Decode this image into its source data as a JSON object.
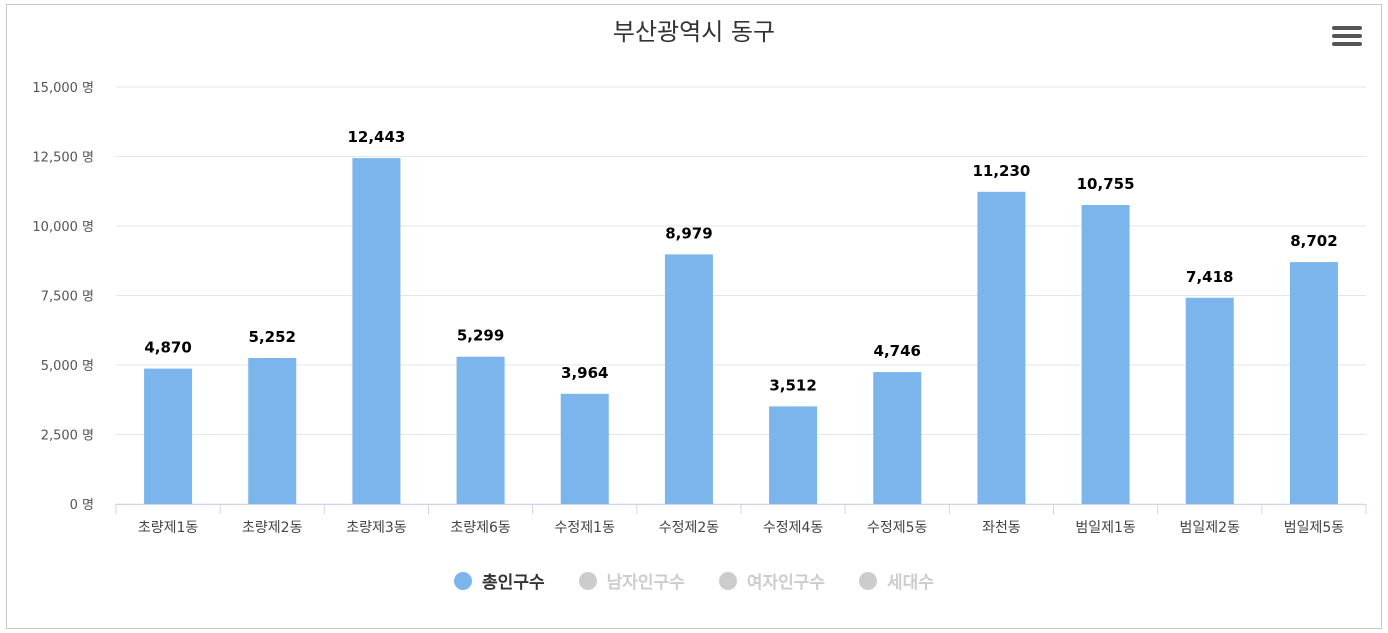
{
  "chart_data": {
    "type": "bar",
    "title": "부산광역시 동구",
    "categories": [
      "초량제1동",
      "초량제2동",
      "초량제3동",
      "초량제6동",
      "수정제1동",
      "수정제2동",
      "수정제4동",
      "수정제5동",
      "좌천동",
      "범일제1동",
      "범일제2동",
      "범일제5동"
    ],
    "series": [
      {
        "name": "총인구수",
        "values": [
          4870,
          5252,
          12443,
          5299,
          3964,
          8979,
          3512,
          4746,
          11230,
          10755,
          7418,
          8702
        ]
      }
    ],
    "value_labels": [
      "4,870",
      "5,252",
      "12,443",
      "5,299",
      "3,964",
      "8,979",
      "3,512",
      "4,746",
      "11,230",
      "10,755",
      "7,418",
      "8,702"
    ],
    "y_ticks": [
      0,
      2500,
      5000,
      7500,
      10000,
      12500,
      15000
    ],
    "y_tick_labels": [
      "0 명",
      "2,500 명",
      "5,000 명",
      "7,500 명",
      "10,000 명",
      "12,500 명",
      "15,000 명"
    ],
    "ylim": [
      0,
      15000
    ],
    "grid": true,
    "legend_position": "bottom",
    "legend": [
      {
        "label": "총인구수",
        "active": true
      },
      {
        "label": "남자인구수",
        "active": false
      },
      {
        "label": "여자인구수",
        "active": false
      },
      {
        "label": "세대수",
        "active": false
      }
    ],
    "colors": {
      "bar": "#7cb5ec",
      "inactive": "#cccccc",
      "active_text": "#333333",
      "inactive_text": "#cccccc"
    }
  },
  "toolbar": {
    "menu_icon": "hamburger-menu-icon"
  }
}
